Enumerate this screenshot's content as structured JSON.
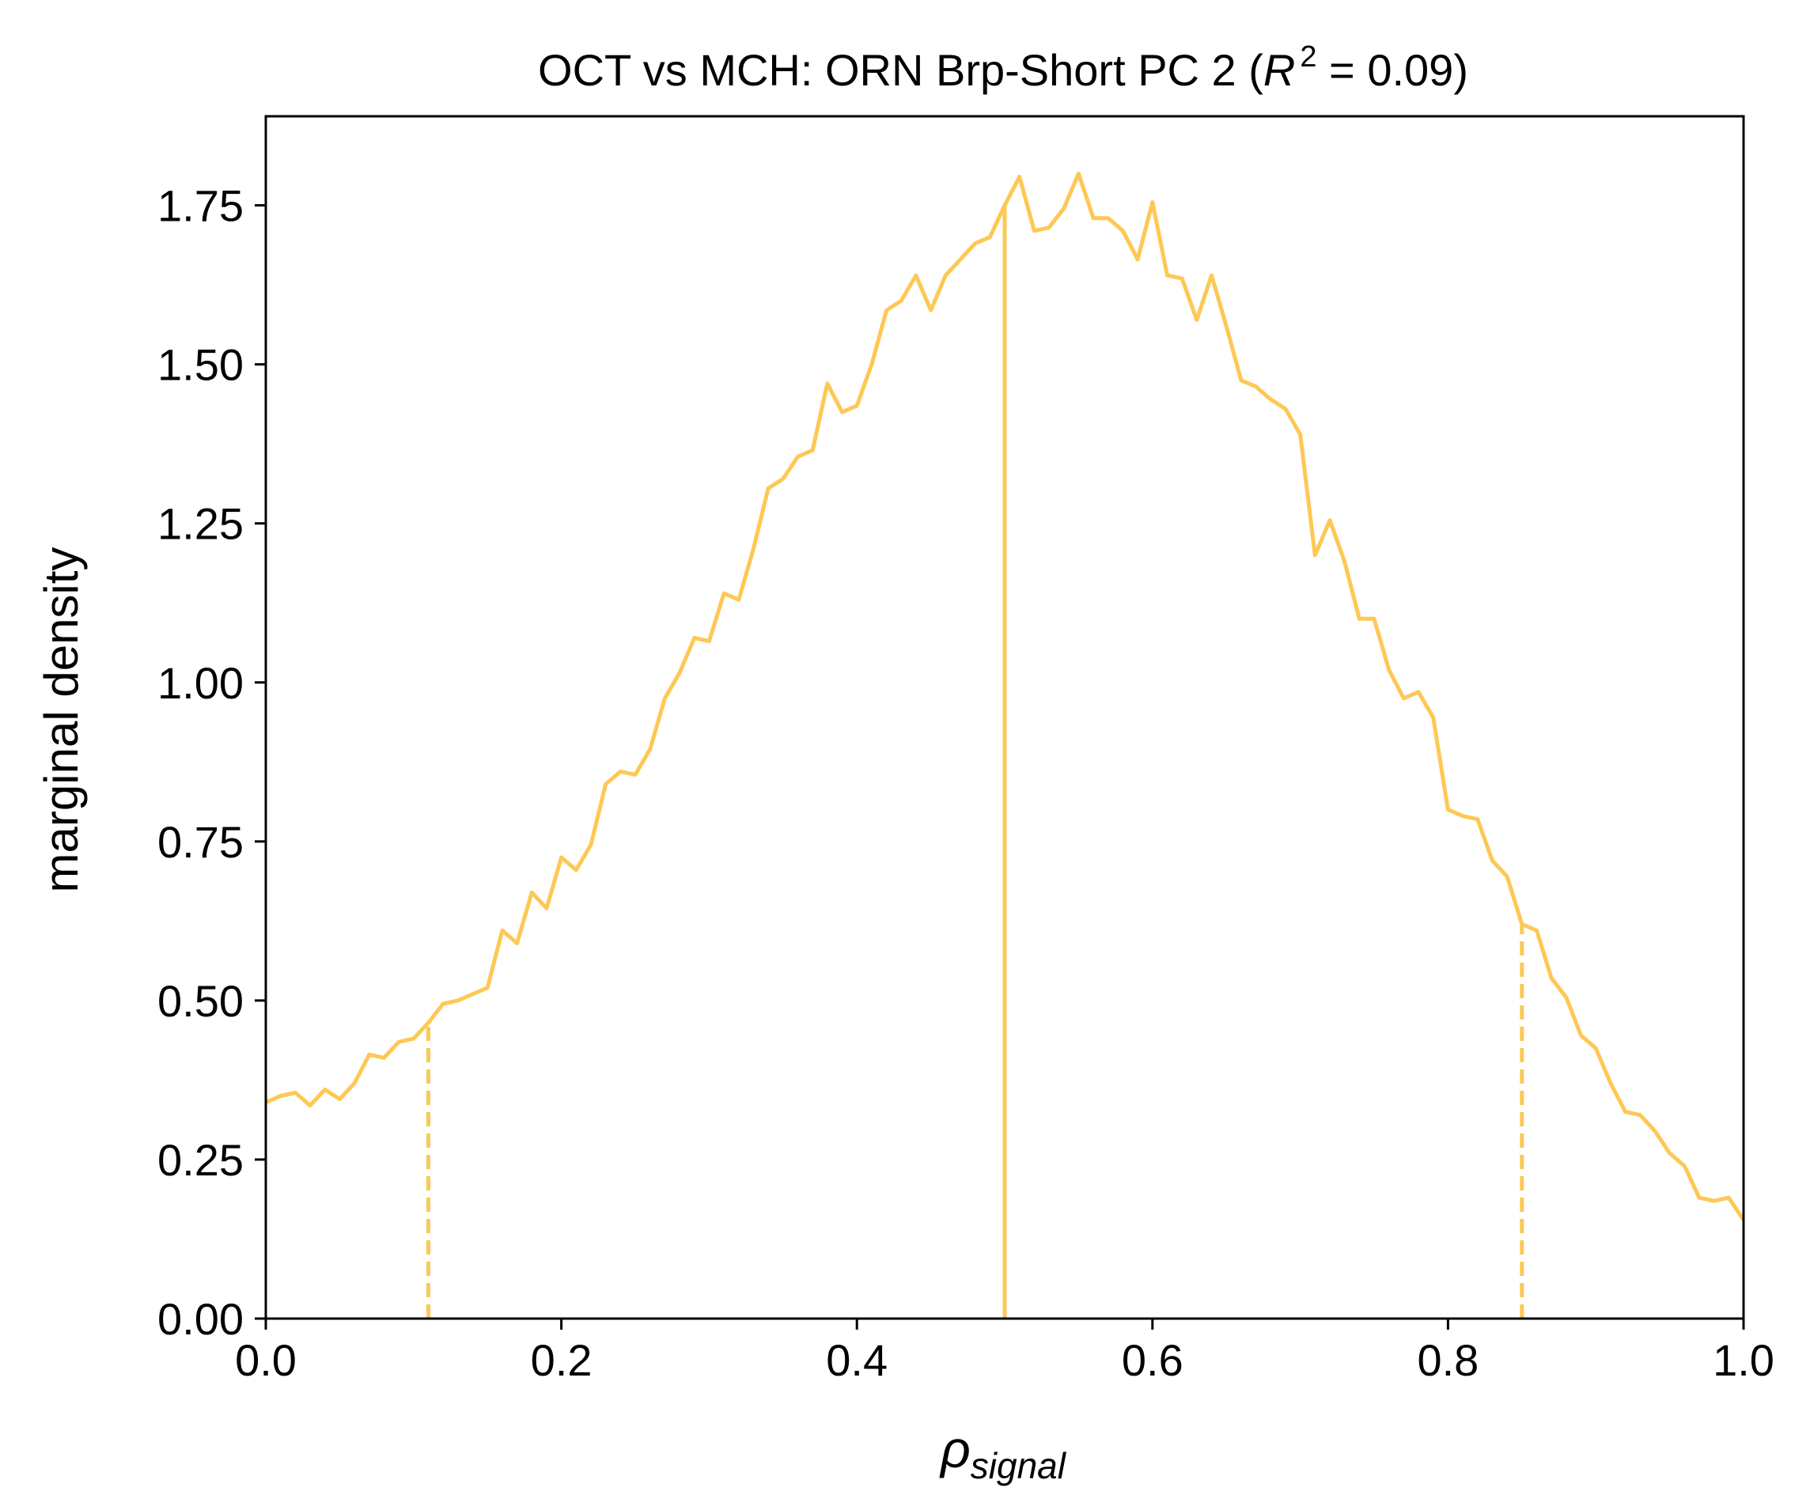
{
  "chart_data": {
    "type": "line",
    "title_prefix": "OCT vs MCH: ORN Brp-Short PC 2 (",
    "title_var": "R",
    "title_sup": "2",
    "title_suffix": " = 0.09)",
    "xlabel_main": "ρ",
    "xlabel_sub": "signal",
    "ylabel": "marginal density",
    "xlim": [
      0.0,
      1.0
    ],
    "ylim": [
      0.0,
      1.89
    ],
    "xticks": [
      "0.0",
      "0.2",
      "0.4",
      "0.6",
      "0.8",
      "1.0"
    ],
    "yticks": [
      "0.00",
      "0.25",
      "0.50",
      "0.75",
      "1.00",
      "1.25",
      "1.50",
      "1.75"
    ],
    "grid": false,
    "color": "#FDC854",
    "series": [
      {
        "x": [
          0.0,
          0.01,
          0.02,
          0.03,
          0.04,
          0.05,
          0.06,
          0.07,
          0.08,
          0.09,
          0.1,
          0.11,
          0.12,
          0.13,
          0.14,
          0.15,
          0.16,
          0.17,
          0.18,
          0.19,
          0.2,
          0.21,
          0.22,
          0.23,
          0.24,
          0.25,
          0.26,
          0.27,
          0.28,
          0.29,
          0.3,
          0.31,
          0.32,
          0.33,
          0.34,
          0.35,
          0.36,
          0.37,
          0.38,
          0.39,
          0.4,
          0.41,
          0.42,
          0.43,
          0.44,
          0.45,
          0.46,
          0.47,
          0.48,
          0.49,
          0.5,
          0.51,
          0.52,
          0.53,
          0.54,
          0.55,
          0.56,
          0.57,
          0.58,
          0.59,
          0.6,
          0.61,
          0.62,
          0.63,
          0.64,
          0.65,
          0.66,
          0.67,
          0.68,
          0.69,
          0.7,
          0.71,
          0.72,
          0.73,
          0.74,
          0.75,
          0.76,
          0.77,
          0.78,
          0.79,
          0.8,
          0.81,
          0.82,
          0.83,
          0.84,
          0.85,
          0.86,
          0.87,
          0.88,
          0.89,
          0.9,
          0.91,
          0.92,
          0.93,
          0.94,
          0.95,
          0.96,
          0.97,
          0.98,
          0.99,
          1.0
        ],
        "y": [
          0.34,
          0.35,
          0.355,
          0.335,
          0.36,
          0.345,
          0.37,
          0.415,
          0.41,
          0.435,
          0.44,
          0.465,
          0.495,
          0.5,
          0.51,
          0.52,
          0.61,
          0.59,
          0.67,
          0.645,
          0.725,
          0.705,
          0.745,
          0.84,
          0.86,
          0.855,
          0.895,
          0.975,
          1.015,
          1.07,
          1.065,
          1.14,
          1.13,
          1.21,
          1.305,
          1.32,
          1.355,
          1.365,
          1.47,
          1.425,
          1.435,
          1.5,
          1.585,
          1.6,
          1.64,
          1.585,
          1.64,
          1.665,
          1.69,
          1.7,
          1.75,
          1.795,
          1.71,
          1.715,
          1.745,
          1.8,
          1.73,
          1.73,
          1.71,
          1.665,
          1.755,
          1.64,
          1.635,
          1.57,
          1.64,
          1.56,
          1.475,
          1.465,
          1.445,
          1.43,
          1.39,
          1.2,
          1.255,
          1.19,
          1.1,
          1.1,
          1.02,
          0.975,
          0.985,
          0.945,
          0.8,
          0.79,
          0.785,
          0.72,
          0.695,
          0.62,
          0.61,
          0.535,
          0.505,
          0.445,
          0.425,
          0.37,
          0.325,
          0.32,
          0.295,
          0.26,
          0.24,
          0.19,
          0.185,
          0.19,
          0.155
        ]
      }
    ],
    "vlines": [
      {
        "x": 0.11,
        "style": "dashed"
      },
      {
        "x": 0.5,
        "style": "solid"
      },
      {
        "x": 0.85,
        "style": "dashed"
      }
    ]
  }
}
